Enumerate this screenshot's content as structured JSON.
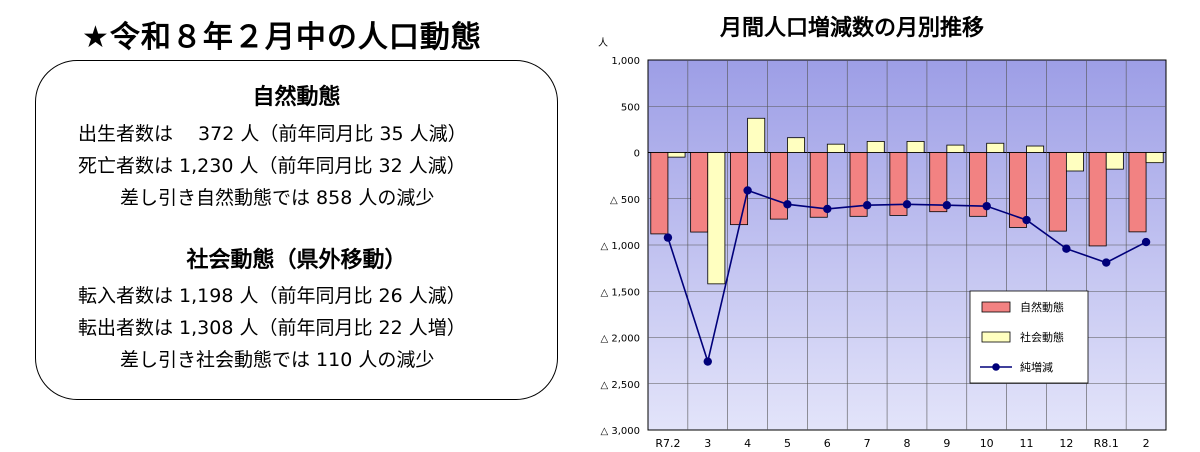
{
  "left": {
    "title": "★令和８年２月中の人口動態",
    "natural": {
      "heading": "自然動態",
      "lines": [
        "出生者数は　 372 人（前年同月比 35 人減）",
        "死亡者数は 1,230 人（前年同月比 32 人減）",
        "差し引き自然動態では 858 人の減少"
      ]
    },
    "social": {
      "heading": "社会動態（県外移動）",
      "lines": [
        "転入者数は 1,198 人（前年同月比 26 人減）",
        "転出者数は 1,308 人（前年同月比 22 人増）",
        "差し引き社会動態では 110 人の減少"
      ]
    }
  },
  "chart_data": {
    "type": "bar",
    "title": "月間人口増減数の月別推移",
    "ylabel": "人",
    "categories": [
      "R7.2",
      "3",
      "4",
      "5",
      "6",
      "7",
      "8",
      "9",
      "10",
      "11",
      "12",
      "R8.1",
      "2"
    ],
    "ylim": [
      -3000,
      1000
    ],
    "yticks": [
      1000,
      500,
      0,
      -500,
      -1000,
      -1500,
      -2000,
      -2500,
      -3000
    ],
    "ytick_labels": [
      "1,000",
      "500",
      "0",
      "△ 500",
      "△ 1,000",
      "△ 1,500",
      "△ 2,000",
      "△ 2,500",
      "△ 3,000"
    ],
    "series": [
      {
        "name": "自然動態",
        "kind": "bar",
        "color": "#f28282",
        "values": [
          -880,
          -860,
          -780,
          -720,
          -700,
          -690,
          -680,
          -640,
          -690,
          -810,
          -850,
          -1010,
          -858
        ]
      },
      {
        "name": "社会動態",
        "kind": "bar",
        "color": "#ffffc0",
        "values": [
          -50,
          -1420,
          370,
          160,
          90,
          120,
          120,
          80,
          100,
          70,
          -200,
          -180,
          -110
        ]
      },
      {
        "name": "純増減",
        "kind": "line",
        "color": "#00007a",
        "values": [
          -920,
          -2260,
          -410,
          -560,
          -610,
          -570,
          -560,
          -570,
          -580,
          -730,
          -1040,
          -1190,
          -968
        ]
      }
    ],
    "grid": true,
    "legend": "lower-right"
  }
}
